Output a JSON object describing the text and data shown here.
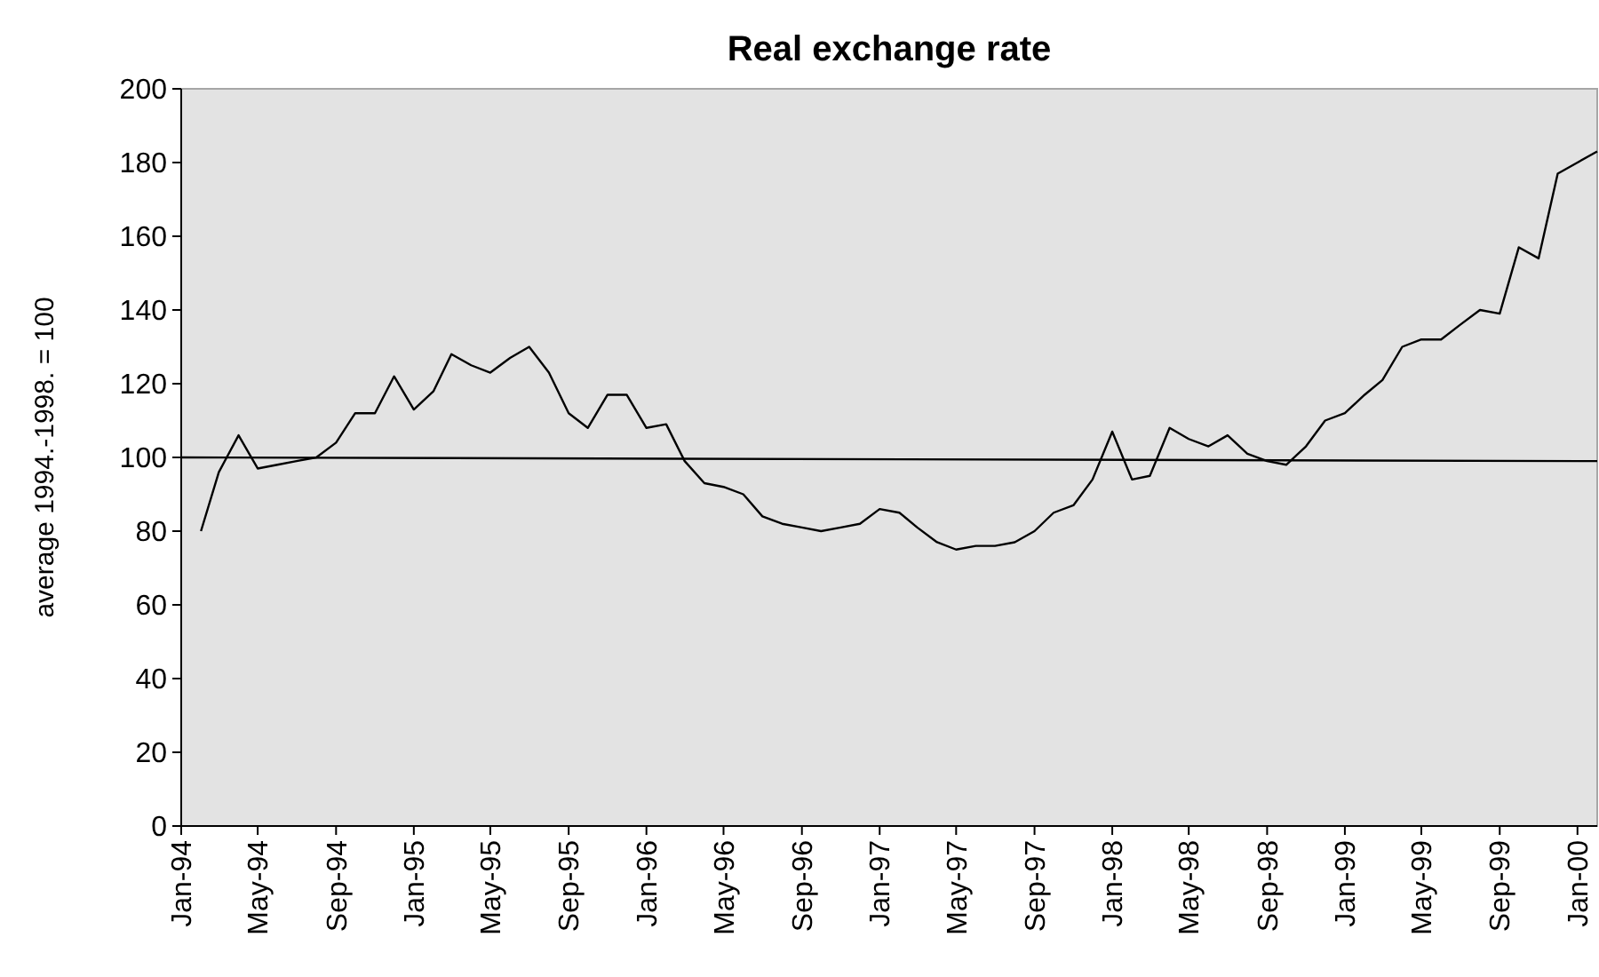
{
  "chart_data": {
    "type": "line",
    "title": "Real exchange rate",
    "ylabel": "average 1994.-1998. = 100",
    "x": [
      "1994-02",
      "1994-03",
      "1994-04",
      "1994-05",
      "1994-06",
      "1994-07",
      "1994-08",
      "1994-09",
      "1994-10",
      "1994-11",
      "1994-12",
      "1995-01",
      "1995-02",
      "1995-03",
      "1995-04",
      "1995-05",
      "1995-06",
      "1995-07",
      "1995-08",
      "1995-09",
      "1995-10",
      "1995-11",
      "1995-12",
      "1996-01",
      "1996-02",
      "1996-03",
      "1996-04",
      "1996-05",
      "1996-06",
      "1996-07",
      "1996-08",
      "1996-09",
      "1996-10",
      "1996-11",
      "1996-12",
      "1997-01",
      "1997-02",
      "1997-03",
      "1997-04",
      "1997-05",
      "1997-06",
      "1997-07",
      "1997-08",
      "1997-09",
      "1997-10",
      "1997-11",
      "1997-12",
      "1998-01",
      "1998-02",
      "1998-03",
      "1998-04",
      "1998-05",
      "1998-06",
      "1998-07",
      "1998-08",
      "1998-09",
      "1998-10",
      "1998-11",
      "1998-12",
      "1999-01",
      "1999-02",
      "1999-03",
      "1999-04",
      "1999-05",
      "1999-06",
      "1999-07",
      "1999-08",
      "1999-09",
      "1999-10",
      "1999-11",
      "1999-12",
      "2000-01",
      "2000-02"
    ],
    "series": [
      {
        "color": "#000000",
        "values": [
          80,
          96,
          106,
          97,
          98,
          99,
          100,
          104,
          112,
          112,
          122,
          113,
          118,
          128,
          125,
          123,
          127,
          130,
          123,
          112,
          108,
          117,
          117,
          108,
          109,
          99,
          93,
          92,
          90,
          84,
          82,
          81,
          80,
          81,
          82,
          86,
          85,
          81,
          77,
          75,
          76,
          76,
          77,
          80,
          85,
          87,
          94,
          107,
          94,
          95,
          108,
          105,
          103,
          106,
          101,
          99,
          98,
          103,
          110,
          112,
          117,
          121,
          130,
          132,
          132,
          136,
          140,
          139,
          157,
          154,
          177,
          180,
          183
        ]
      },
      {
        "type": "line",
        "color": "#000000",
        "x": [
          "1994-01",
          "2000-02"
        ],
        "values": [
          100,
          99
        ]
      }
    ],
    "xlim": [
      "1994-01",
      "2000-02"
    ],
    "xticks": [
      {
        "value": "1994-01",
        "label": "Jan-94"
      },
      {
        "value": "1994-05",
        "label": "May-94"
      },
      {
        "value": "1994-09",
        "label": "Sep-94"
      },
      {
        "value": "1995-01",
        "label": "Jan-95"
      },
      {
        "value": "1995-05",
        "label": "May-95"
      },
      {
        "value": "1995-09",
        "label": "Sep-95"
      },
      {
        "value": "1996-01",
        "label": "Jan-96"
      },
      {
        "value": "1996-05",
        "label": "May-96"
      },
      {
        "value": "1996-09",
        "label": "Sep-96"
      },
      {
        "value": "1997-01",
        "label": "Jan-97"
      },
      {
        "value": "1997-05",
        "label": "May-97"
      },
      {
        "value": "1997-09",
        "label": "Sep-97"
      },
      {
        "value": "1998-01",
        "label": "Jan-98"
      },
      {
        "value": "1998-05",
        "label": "May-98"
      },
      {
        "value": "1998-09",
        "label": "Sep-98"
      },
      {
        "value": "1999-01",
        "label": "Jan-99"
      },
      {
        "value": "1999-05",
        "label": "May-99"
      },
      {
        "value": "1999-09",
        "label": "Sep-99"
      },
      {
        "value": "2000-01",
        "label": "Jan-00"
      }
    ],
    "ylim": [
      0,
      200
    ],
    "yticks": [
      0,
      20,
      40,
      60,
      80,
      100,
      120,
      140,
      160,
      180,
      200
    ],
    "grid": false,
    "marker": "none",
    "line_style": "solid"
  }
}
